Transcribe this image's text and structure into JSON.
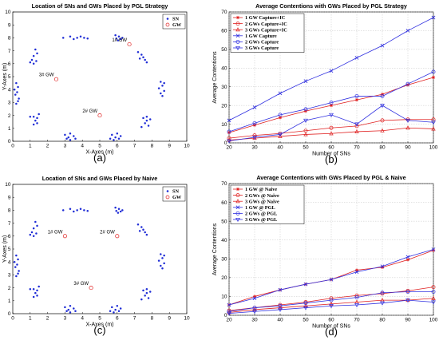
{
  "chart_data": [
    {
      "id": "a",
      "type": "scatter",
      "title": "Location of SNs and GWs Placed by PGL Strategy",
      "xlabel": "X-Axes (m)",
      "ylabel": "Y-Axes (m)",
      "xlim": [
        0,
        10
      ],
      "ylim": [
        0,
        10
      ],
      "xticks": [
        "0",
        "1",
        "2",
        "3",
        "4",
        "5",
        "6",
        "7",
        "8",
        "9",
        "10"
      ],
      "yticks": [
        "0",
        "1",
        "2",
        "3",
        "4",
        "5",
        "6",
        "7",
        "8",
        "9",
        "10"
      ],
      "legend": [
        "SN",
        "GW"
      ],
      "panel_label": "(a)",
      "sn_points": [
        [
          2.9,
          8.0
        ],
        [
          3.3,
          8.1
        ],
        [
          3.5,
          7.9
        ],
        [
          3.7,
          8.0
        ],
        [
          3.9,
          8.1
        ],
        [
          4.1,
          8.0
        ],
        [
          4.3,
          7.95
        ],
        [
          5.9,
          8.2
        ],
        [
          6.1,
          8.1
        ],
        [
          6.2,
          7.9
        ],
        [
          6.3,
          8.0
        ],
        [
          6.05,
          7.8
        ],
        [
          5.95,
          7.95
        ],
        [
          1.3,
          7.1
        ],
        [
          1.4,
          6.8
        ],
        [
          1.2,
          6.6
        ],
        [
          1.1,
          6.3
        ],
        [
          1.0,
          6.1
        ],
        [
          1.2,
          6.0
        ],
        [
          1.35,
          6.2
        ],
        [
          7.2,
          6.9
        ],
        [
          7.4,
          6.7
        ],
        [
          7.5,
          6.5
        ],
        [
          7.6,
          6.3
        ],
        [
          7.3,
          6.4
        ],
        [
          7.7,
          6.1
        ],
        [
          0.2,
          4.5
        ],
        [
          0.3,
          4.2
        ],
        [
          0.1,
          4.0
        ],
        [
          0.25,
          3.8
        ],
        [
          0.15,
          3.6
        ],
        [
          0.35,
          3.3
        ],
        [
          0.3,
          3.1
        ],
        [
          0.2,
          2.9
        ],
        [
          8.5,
          4.6
        ],
        [
          8.6,
          4.3
        ],
        [
          8.4,
          4.1
        ],
        [
          8.7,
          3.9
        ],
        [
          8.5,
          3.7
        ],
        [
          8.6,
          3.5
        ],
        [
          8.7,
          4.5
        ],
        [
          1.0,
          1.9
        ],
        [
          1.2,
          1.9
        ],
        [
          1.3,
          1.6
        ],
        [
          1.4,
          1.4
        ],
        [
          1.2,
          1.3
        ],
        [
          1.4,
          1.8
        ],
        [
          1.5,
          2.1
        ],
        [
          7.5,
          1.8
        ],
        [
          7.7,
          1.6
        ],
        [
          7.6,
          1.4
        ],
        [
          7.8,
          1.2
        ],
        [
          7.4,
          1.1
        ],
        [
          7.9,
          1.7
        ],
        [
          7.7,
          1.9
        ],
        [
          3.0,
          0.5
        ],
        [
          3.2,
          0.3
        ],
        [
          3.3,
          0.6
        ],
        [
          3.5,
          0.4
        ],
        [
          3.3,
          0.1
        ],
        [
          3.6,
          0.2
        ],
        [
          3.1,
          0.2
        ],
        [
          5.7,
          0.5
        ],
        [
          5.9,
          0.3
        ],
        [
          6.0,
          0.6
        ],
        [
          6.1,
          0.2
        ],
        [
          5.8,
          0.1
        ],
        [
          6.2,
          0.4
        ],
        [
          5.6,
          0.2
        ]
      ],
      "gateways": [
        {
          "label": "1# GW",
          "x": 6.7,
          "y": 7.5
        },
        {
          "label": "2# GW",
          "x": 5.0,
          "y": 2.0
        },
        {
          "label": "3# GW",
          "x": 2.5,
          "y": 4.8
        }
      ]
    },
    {
      "id": "b",
      "type": "line",
      "title": "Average Contentions with GWs Placed by PGL Strategy",
      "xlabel": "Number of SNs",
      "ylabel": "Average Contentions",
      "x": [
        20,
        30,
        40,
        50,
        60,
        70,
        80,
        90,
        100
      ],
      "xlim": [
        20,
        100
      ],
      "ylim": [
        0,
        70
      ],
      "xticks": [
        "20",
        "30",
        "40",
        "50",
        "60",
        "70",
        "80",
        "90",
        "100"
      ],
      "yticks": [
        "0",
        "10",
        "20",
        "30",
        "40",
        "50",
        "60",
        "70"
      ],
      "panel_label": "(b)",
      "series": [
        {
          "name": "1 GW Capture+IC",
          "color": "#e02020",
          "marker": "star",
          "values": [
            5.5,
            9.5,
            13.5,
            17,
            20,
            23,
            26,
            31,
            35
          ]
        },
        {
          "name": "2 GWs Capture+IC",
          "color": "#e02020",
          "marker": "circle",
          "values": [
            2.5,
            4,
            5,
            6.5,
            8,
            9,
            12,
            12.5,
            12.5
          ]
        },
        {
          "name": "3 GWs Capture+IC",
          "color": "#e02020",
          "marker": "triangle",
          "values": [
            1.5,
            2.5,
            3.5,
            4.5,
            5,
            6,
            6.5,
            8,
            7.5
          ]
        },
        {
          "name": "1 GW Capture",
          "color": "#3030e0",
          "marker": "x",
          "values": [
            12,
            19,
            26.5,
            33,
            38.5,
            45.5,
            52,
            60,
            67
          ]
        },
        {
          "name": "2 GWs Capture",
          "color": "#3030e0",
          "marker": "circle",
          "values": [
            6,
            10.5,
            15,
            18,
            21.5,
            25,
            25,
            31.5,
            38
          ]
        },
        {
          "name": "3 GWs Capture",
          "color": "#3030e0",
          "marker": "triangle-down",
          "values": [
            1,
            3,
            4.5,
            12,
            15,
            10,
            20,
            12,
            11
          ]
        }
      ]
    },
    {
      "id": "c",
      "type": "scatter",
      "title": "Location of SNs and GWs Placed by Naive",
      "xlabel": "X-Axes (m)",
      "ylabel": "Y-Axes (m)",
      "xlim": [
        0,
        10
      ],
      "ylim": [
        0,
        10
      ],
      "xticks": [
        "0",
        "1",
        "2",
        "3",
        "4",
        "5",
        "6",
        "7",
        "8",
        "9",
        "10"
      ],
      "yticks": [
        "0",
        "1",
        "2",
        "3",
        "4",
        "5",
        "6",
        "7",
        "8",
        "9",
        "10"
      ],
      "legend": [
        "SN",
        "GW"
      ],
      "panel_label": "(c)",
      "sn_points": [
        [
          2.9,
          8.0
        ],
        [
          3.3,
          8.1
        ],
        [
          3.5,
          7.9
        ],
        [
          3.7,
          8.0
        ],
        [
          3.9,
          8.1
        ],
        [
          4.1,
          8.0
        ],
        [
          4.3,
          7.95
        ],
        [
          5.9,
          8.2
        ],
        [
          6.1,
          8.1
        ],
        [
          6.2,
          7.9
        ],
        [
          6.3,
          8.0
        ],
        [
          6.05,
          7.8
        ],
        [
          5.95,
          7.95
        ],
        [
          1.3,
          7.1
        ],
        [
          1.4,
          6.8
        ],
        [
          1.2,
          6.6
        ],
        [
          1.1,
          6.3
        ],
        [
          1.0,
          6.1
        ],
        [
          1.2,
          6.0
        ],
        [
          1.35,
          6.2
        ],
        [
          7.2,
          6.9
        ],
        [
          7.4,
          6.7
        ],
        [
          7.5,
          6.5
        ],
        [
          7.6,
          6.3
        ],
        [
          7.3,
          6.4
        ],
        [
          7.7,
          6.1
        ],
        [
          0.2,
          4.5
        ],
        [
          0.3,
          4.2
        ],
        [
          0.1,
          4.0
        ],
        [
          0.25,
          3.8
        ],
        [
          0.15,
          3.6
        ],
        [
          0.35,
          3.3
        ],
        [
          0.3,
          3.1
        ],
        [
          0.2,
          2.9
        ],
        [
          8.5,
          4.6
        ],
        [
          8.6,
          4.3
        ],
        [
          8.4,
          4.1
        ],
        [
          8.7,
          3.9
        ],
        [
          8.5,
          3.7
        ],
        [
          8.6,
          3.5
        ],
        [
          8.7,
          4.5
        ],
        [
          1.0,
          1.9
        ],
        [
          1.2,
          1.9
        ],
        [
          1.3,
          1.6
        ],
        [
          1.4,
          1.4
        ],
        [
          1.2,
          1.3
        ],
        [
          1.4,
          1.8
        ],
        [
          1.5,
          2.1
        ],
        [
          7.5,
          1.8
        ],
        [
          7.7,
          1.6
        ],
        [
          7.6,
          1.4
        ],
        [
          7.8,
          1.2
        ],
        [
          7.4,
          1.1
        ],
        [
          7.9,
          1.7
        ],
        [
          7.7,
          1.9
        ],
        [
          3.0,
          0.5
        ],
        [
          3.2,
          0.3
        ],
        [
          3.3,
          0.6
        ],
        [
          3.5,
          0.4
        ],
        [
          3.3,
          0.1
        ],
        [
          3.6,
          0.2
        ],
        [
          3.1,
          0.2
        ],
        [
          5.7,
          0.5
        ],
        [
          5.9,
          0.3
        ],
        [
          6.0,
          0.6
        ],
        [
          6.1,
          0.2
        ],
        [
          5.8,
          0.1
        ],
        [
          6.2,
          0.4
        ],
        [
          5.6,
          0.2
        ]
      ],
      "gateways": [
        {
          "label": "1# GW",
          "x": 3.0,
          "y": 6.0
        },
        {
          "label": "2# GW",
          "x": 6.0,
          "y": 6.0
        },
        {
          "label": "3# GW",
          "x": 4.5,
          "y": 2.0
        }
      ]
    },
    {
      "id": "d",
      "type": "line",
      "title": "Average Contentions with GWs Placed by PGL & Naive",
      "xlabel": "Number of SNs",
      "ylabel": "Average Contentions",
      "x": [
        20,
        30,
        40,
        50,
        60,
        70,
        80,
        90,
        100
      ],
      "xlim": [
        20,
        100
      ],
      "ylim": [
        0,
        70
      ],
      "xticks": [
        "20",
        "30",
        "40",
        "50",
        "60",
        "70",
        "80",
        "90",
        "100"
      ],
      "yticks": [
        "0",
        "10",
        "20",
        "30",
        "40",
        "50",
        "60",
        "70"
      ],
      "panel_label": "(d)",
      "series": [
        {
          "name": "1 GW @ Naive",
          "color": "#e02020",
          "marker": "star",
          "values": [
            5.5,
            10,
            13.5,
            16.5,
            19,
            24,
            25.5,
            29.5,
            34.5
          ]
        },
        {
          "name": "2 GWs @ Naive",
          "color": "#e02020",
          "marker": "circle",
          "values": [
            2.5,
            4,
            5.5,
            7,
            9,
            10.5,
            11.5,
            13,
            15
          ]
        },
        {
          "name": "3 GWs @ Naive",
          "color": "#e02020",
          "marker": "triangle",
          "values": [
            1.5,
            3,
            4,
            5,
            6,
            7,
            8,
            8,
            9
          ]
        },
        {
          "name": "1 GW @ PGL",
          "color": "#3030e0",
          "marker": "x",
          "values": [
            5.5,
            9,
            13.5,
            16.5,
            19,
            23,
            26,
            31,
            35
          ]
        },
        {
          "name": "2 GWs @ PGL",
          "color": "#3030e0",
          "marker": "circle",
          "values": [
            2,
            4,
            5,
            6.5,
            8,
            9.5,
            12,
            12.5,
            12.5
          ]
        },
        {
          "name": "3 GWs @ PGL",
          "color": "#3030e0",
          "marker": "triangle-down",
          "values": [
            1,
            2,
            3,
            4,
            5,
            5.5,
            6.5,
            8,
            7
          ]
        }
      ]
    }
  ]
}
